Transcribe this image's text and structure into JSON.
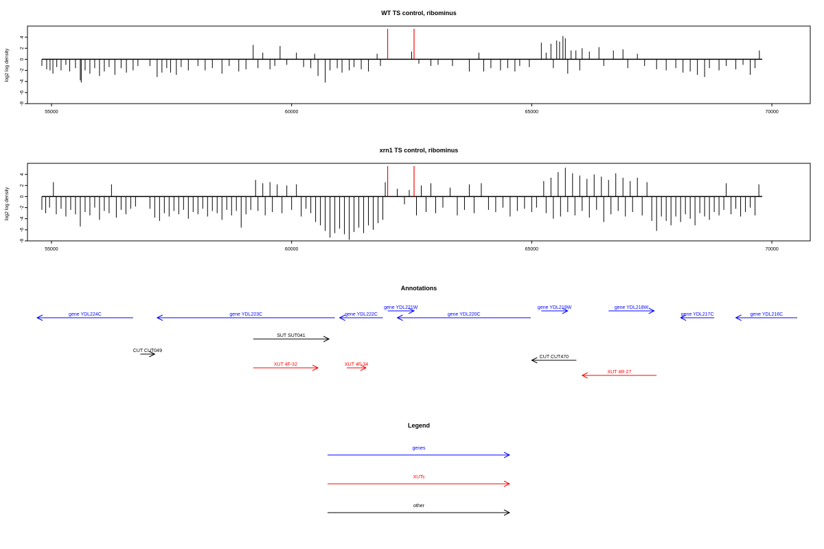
{
  "colors": {
    "genes": "#0000ff",
    "xuts": "#ff0000",
    "other": "#000000",
    "axis": "#000000",
    "marker": "#ff0000"
  },
  "chart_data": [
    {
      "type": "bar",
      "id": "wt",
      "title": "WT TS control, ribominus",
      "ylabel": "log2 log density",
      "xlim": [
        54500,
        70800
      ],
      "ylim": [
        -8,
        6
      ],
      "yticks": [
        -8,
        -6,
        -4,
        -2,
        0,
        2,
        4
      ],
      "yticklabels": [
        "-8",
        "-6",
        "-4",
        "-2",
        "0",
        "2",
        "4"
      ],
      "xticks": [
        55000,
        60000,
        65000,
        70000
      ],
      "xticklabels": [
        "55000",
        "60000",
        "65000",
        "70000"
      ],
      "baseline_span": [
        54800,
        69800
      ],
      "markers": [
        62000,
        62550
      ],
      "points": [
        [
          54800,
          -1.2
        ],
        [
          54900,
          -1.8
        ],
        [
          54970,
          -2.0
        ],
        [
          55030,
          -2.6
        ],
        [
          55110,
          -1.4
        ],
        [
          55200,
          -2.0
        ],
        [
          55300,
          -1.0
        ],
        [
          55380,
          -2.2
        ],
        [
          55500,
          -1.6
        ],
        [
          55600,
          -3.8
        ],
        [
          55620,
          -4.2
        ],
        [
          55700,
          -2.0
        ],
        [
          55800,
          -2.6
        ],
        [
          55900,
          -1.6
        ],
        [
          56000,
          -3.0
        ],
        [
          56100,
          -2.2
        ],
        [
          56200,
          -1.4
        ],
        [
          56320,
          -2.8
        ],
        [
          56450,
          -1.6
        ],
        [
          56560,
          -2.4
        ],
        [
          56700,
          -2.0
        ],
        [
          56800,
          -1.2
        ],
        [
          57050,
          -1.2
        ],
        [
          57200,
          -3.2
        ],
        [
          57300,
          -2.4
        ],
        [
          57400,
          -1.6
        ],
        [
          57480,
          -2.4
        ],
        [
          57600,
          -2.8
        ],
        [
          57700,
          -1.4
        ],
        [
          57850,
          -2.0
        ],
        [
          58050,
          -1.2
        ],
        [
          58200,
          -2.0
        ],
        [
          58350,
          -1.6
        ],
        [
          58550,
          -2.6
        ],
        [
          58700,
          -1.2
        ],
        [
          58900,
          -2.2
        ],
        [
          59050,
          -1.8
        ],
        [
          59200,
          2.6
        ],
        [
          59300,
          -1.6
        ],
        [
          59400,
          1.2
        ],
        [
          59550,
          -1.8
        ],
        [
          59650,
          -1.2
        ],
        [
          59760,
          2.4
        ],
        [
          59900,
          -1.0
        ],
        [
          60100,
          1.2
        ],
        [
          60250,
          -1.4
        ],
        [
          60400,
          -1.6
        ],
        [
          60480,
          1.0
        ],
        [
          60550,
          -3.0
        ],
        [
          60700,
          -4.2
        ],
        [
          60800,
          -2.0
        ],
        [
          60950,
          -1.6
        ],
        [
          61050,
          -2.4
        ],
        [
          61200,
          -2.0
        ],
        [
          61300,
          -1.4
        ],
        [
          61450,
          -1.8
        ],
        [
          61600,
          -2.2
        ],
        [
          61780,
          1.0
        ],
        [
          61850,
          -1.2
        ],
        [
          62500,
          1.4
        ],
        [
          62650,
          -0.8
        ],
        [
          62900,
          -1.2
        ],
        [
          63050,
          -1.0
        ],
        [
          63350,
          -1.2
        ],
        [
          63700,
          -2.2
        ],
        [
          63900,
          1.2
        ],
        [
          64000,
          -2.2
        ],
        [
          64150,
          -1.6
        ],
        [
          64350,
          -2.0
        ],
        [
          64500,
          -1.6
        ],
        [
          64650,
          -2.2
        ],
        [
          64750,
          -1.2
        ],
        [
          64950,
          -1.4
        ],
        [
          65200,
          3.0
        ],
        [
          65300,
          1.2
        ],
        [
          65400,
          2.8
        ],
        [
          65450,
          -1.6
        ],
        [
          65520,
          3.4
        ],
        [
          65580,
          3.2
        ],
        [
          65650,
          4.2
        ],
        [
          65700,
          3.8
        ],
        [
          65750,
          -2.6
        ],
        [
          65820,
          1.6
        ],
        [
          65920,
          1.6
        ],
        [
          66000,
          -2.0
        ],
        [
          66050,
          2.0
        ],
        [
          66200,
          1.4
        ],
        [
          66400,
          2.2
        ],
        [
          66500,
          -1.2
        ],
        [
          66700,
          1.6
        ],
        [
          66900,
          1.8
        ],
        [
          67000,
          -1.6
        ],
        [
          67200,
          1.0
        ],
        [
          67350,
          -1.2
        ],
        [
          67600,
          -1.8
        ],
        [
          67800,
          -2.0
        ],
        [
          68000,
          -1.6
        ],
        [
          68150,
          -2.4
        ],
        [
          68300,
          -2.2
        ],
        [
          68450,
          -2.8
        ],
        [
          68600,
          -3.2
        ],
        [
          68700,
          -1.6
        ],
        [
          68900,
          -2.0
        ],
        [
          69050,
          -1.2
        ],
        [
          69250,
          -1.8
        ],
        [
          69400,
          -1.0
        ],
        [
          69550,
          -2.8
        ],
        [
          69650,
          -1.6
        ],
        [
          69740,
          1.6
        ]
      ]
    },
    {
      "type": "bar",
      "id": "xrn1",
      "title": "xrn1 TS control, ribominus",
      "ylabel": "log2 log density",
      "xlim": [
        54500,
        70800
      ],
      "ylim": [
        -8,
        6
      ],
      "yticks": [
        -8,
        -6,
        -4,
        -2,
        0,
        2,
        4
      ],
      "yticklabels": [
        "-8",
        "-6",
        "-4",
        "-2",
        "0",
        "2",
        "4"
      ],
      "xticks": [
        55000,
        60000,
        65000,
        70000
      ],
      "xticklabels": [
        "55000",
        "60000",
        "65000",
        "70000"
      ],
      "baseline_span": [
        54800,
        69800
      ],
      "markers": [
        62000,
        62550
      ],
      "points": [
        [
          54800,
          -2.4
        ],
        [
          54880,
          -3.0
        ],
        [
          54960,
          -2.0
        ],
        [
          55040,
          2.6
        ],
        [
          55100,
          -3.2
        ],
        [
          55200,
          -2.2
        ],
        [
          55300,
          -3.6
        ],
        [
          55400,
          -2.4
        ],
        [
          55500,
          -3.2
        ],
        [
          55600,
          -5.4
        ],
        [
          55700,
          -2.8
        ],
        [
          55800,
          -3.4
        ],
        [
          55900,
          -2.0
        ],
        [
          56000,
          -4.2
        ],
        [
          56100,
          -2.6
        ],
        [
          56200,
          -3.0
        ],
        [
          56250,
          2.2
        ],
        [
          56350,
          -3.8
        ],
        [
          56450,
          -2.4
        ],
        [
          56550,
          -3.2
        ],
        [
          56650,
          -2.2
        ],
        [
          56750,
          -1.8
        ],
        [
          57050,
          -2.2
        ],
        [
          57150,
          -3.8
        ],
        [
          57250,
          -4.4
        ],
        [
          57350,
          -3.0
        ],
        [
          57450,
          -3.6
        ],
        [
          57550,
          -2.6
        ],
        [
          57650,
          -3.2
        ],
        [
          57750,
          -2.4
        ],
        [
          57850,
          -4.0
        ],
        [
          57950,
          -2.8
        ],
        [
          58050,
          -3.2
        ],
        [
          58150,
          -2.2
        ],
        [
          58250,
          -3.6
        ],
        [
          58350,
          -2.6
        ],
        [
          58450,
          -3.0
        ],
        [
          58550,
          -4.2
        ],
        [
          58650,
          -2.4
        ],
        [
          58750,
          -3.4
        ],
        [
          58850,
          -2.6
        ],
        [
          58950,
          -5.6
        ],
        [
          59050,
          -3.2
        ],
        [
          59150,
          -2.4
        ],
        [
          59250,
          3.0
        ],
        [
          59300,
          -2.6
        ],
        [
          59400,
          2.4
        ],
        [
          59450,
          -3.4
        ],
        [
          59550,
          2.6
        ],
        [
          59600,
          -2.8
        ],
        [
          59700,
          2.2
        ],
        [
          59800,
          -3.0
        ],
        [
          59900,
          2.0
        ],
        [
          60000,
          -2.4
        ],
        [
          60100,
          2.2
        ],
        [
          60200,
          -3.6
        ],
        [
          60300,
          -2.2
        ],
        [
          60400,
          -3.0
        ],
        [
          60500,
          -4.6
        ],
        [
          60600,
          -5.2
        ],
        [
          60700,
          -6.2
        ],
        [
          60800,
          -7.4
        ],
        [
          60900,
          -6.6
        ],
        [
          61000,
          -5.8
        ],
        [
          61100,
          -6.8
        ],
        [
          61200,
          -7.8
        ],
        [
          61300,
          -6.4
        ],
        [
          61400,
          -5.6
        ],
        [
          61500,
          -6.6
        ],
        [
          61600,
          -5.2
        ],
        [
          61700,
          -6.0
        ],
        [
          61800,
          -4.8
        ],
        [
          61900,
          -4.2
        ],
        [
          61950,
          2.6
        ],
        [
          62200,
          1.4
        ],
        [
          62350,
          -1.4
        ],
        [
          62450,
          1.2
        ],
        [
          62600,
          -3.4
        ],
        [
          62700,
          2.0
        ],
        [
          62800,
          -2.8
        ],
        [
          62900,
          2.4
        ],
        [
          63000,
          -3.0
        ],
        [
          63150,
          -2.0
        ],
        [
          63300,
          1.6
        ],
        [
          63450,
          -3.4
        ],
        [
          63600,
          -2.4
        ],
        [
          63700,
          2.2
        ],
        [
          63800,
          -3.0
        ],
        [
          63950,
          2.4
        ],
        [
          64100,
          -2.4
        ],
        [
          64250,
          -2.8
        ],
        [
          64400,
          -2.0
        ],
        [
          64550,
          -3.6
        ],
        [
          64700,
          -2.6
        ],
        [
          64850,
          -2.2
        ],
        [
          65000,
          -2.8
        ],
        [
          65100,
          -2.0
        ],
        [
          65250,
          2.8
        ],
        [
          65300,
          -3.0
        ],
        [
          65400,
          3.4
        ],
        [
          65450,
          -4.0
        ],
        [
          65550,
          4.4
        ],
        [
          65600,
          -3.6
        ],
        [
          65700,
          5.2
        ],
        [
          65750,
          -2.8
        ],
        [
          65850,
          4.2
        ],
        [
          65900,
          -3.4
        ],
        [
          66000,
          3.8
        ],
        [
          66050,
          -2.6
        ],
        [
          66150,
          3.2
        ],
        [
          66200,
          -3.8
        ],
        [
          66300,
          4.0
        ],
        [
          66350,
          -2.4
        ],
        [
          66450,
          3.6
        ],
        [
          66500,
          -4.6
        ],
        [
          66600,
          3.0
        ],
        [
          66650,
          -3.2
        ],
        [
          66750,
          4.2
        ],
        [
          66800,
          -2.6
        ],
        [
          66900,
          3.4
        ],
        [
          66950,
          -3.6
        ],
        [
          67050,
          2.8
        ],
        [
          67100,
          -2.8
        ],
        [
          67200,
          3.4
        ],
        [
          67300,
          -3.4
        ],
        [
          67400,
          2.6
        ],
        [
          67500,
          -4.4
        ],
        [
          67600,
          -6.2
        ],
        [
          67700,
          -3.6
        ],
        [
          67800,
          -4.4
        ],
        [
          67900,
          -5.2
        ],
        [
          68000,
          -3.6
        ],
        [
          68100,
          -4.6
        ],
        [
          68200,
          -3.2
        ],
        [
          68300,
          -4.0
        ],
        [
          68400,
          -5.2
        ],
        [
          68500,
          -3.0
        ],
        [
          68600,
          -3.6
        ],
        [
          68700,
          -4.2
        ],
        [
          68800,
          -2.8
        ],
        [
          68900,
          -3.4
        ],
        [
          69000,
          -2.4
        ],
        [
          69050,
          2.4
        ],
        [
          69150,
          -3.2
        ],
        [
          69250,
          -2.2
        ],
        [
          69350,
          -3.6
        ],
        [
          69450,
          -2.8
        ],
        [
          69550,
          -2.0
        ],
        [
          69650,
          -3.4
        ],
        [
          69730,
          2.2
        ]
      ]
    },
    {
      "type": "annotation_track",
      "id": "annotations",
      "title": "Annotations",
      "features": [
        {
          "label": "gene YDL224C",
          "start": 54700,
          "end": 56700,
          "dir": "rev",
          "cls": "genes",
          "row": 2
        },
        {
          "label": "gene YDL223C",
          "start": 57200,
          "end": 60900,
          "dir": "rev",
          "cls": "genes",
          "row": 2
        },
        {
          "label": "gene YDL222C",
          "start": 61000,
          "end": 61900,
          "dir": "rev",
          "cls": "genes",
          "row": 2
        },
        {
          "label": "gene YDL221W",
          "start": 62000,
          "end": 62550,
          "dir": "fwd",
          "cls": "genes",
          "row": 1
        },
        {
          "label": "gene YDL220C",
          "start": 62200,
          "end": 64980,
          "dir": "rev",
          "cls": "genes",
          "row": 2
        },
        {
          "label": "gene YDL219W",
          "start": 65200,
          "end": 65750,
          "dir": "fwd",
          "cls": "genes",
          "row": 1
        },
        {
          "label": "gene YDL218W",
          "start": 66600,
          "end": 67550,
          "dir": "fwd",
          "cls": "genes",
          "row": 1
        },
        {
          "label": "gene YDL217C",
          "start": 68100,
          "end": 68800,
          "dir": "rev",
          "cls": "genes",
          "row": 2
        },
        {
          "label": "gene YDL216C",
          "start": 69250,
          "end": 70530,
          "dir": "rev",
          "cls": "genes",
          "row": 2
        },
        {
          "label": "SUT SUT041",
          "start": 59200,
          "end": 60780,
          "dir": "fwd",
          "cls": "other",
          "row": 3
        },
        {
          "label": "CUT CUT049",
          "start": 56850,
          "end": 57150,
          "dir": "fwd",
          "cls": "other",
          "row": 4
        },
        {
          "label": "CUT CUT470",
          "start": 65000,
          "end": 65930,
          "dir": "rev",
          "cls": "other",
          "row": 5
        },
        {
          "label": "XUT 4F-32",
          "start": 59200,
          "end": 60550,
          "dir": "fwd",
          "cls": "xuts",
          "row": 6
        },
        {
          "label": "XUT 4F-34",
          "start": 61150,
          "end": 61550,
          "dir": "fwd",
          "cls": "xuts",
          "row": 6
        },
        {
          "label": "XUT 4R-27",
          "start": 66050,
          "end": 67600,
          "dir": "rev",
          "cls": "xuts",
          "row": 7
        }
      ]
    },
    {
      "type": "legend",
      "id": "legend",
      "title": "Legend",
      "items": [
        {
          "label": "genes",
          "cls": "genes"
        },
        {
          "label": "XUTs",
          "cls": "xuts"
        },
        {
          "label": "other",
          "cls": "other"
        }
      ]
    }
  ]
}
